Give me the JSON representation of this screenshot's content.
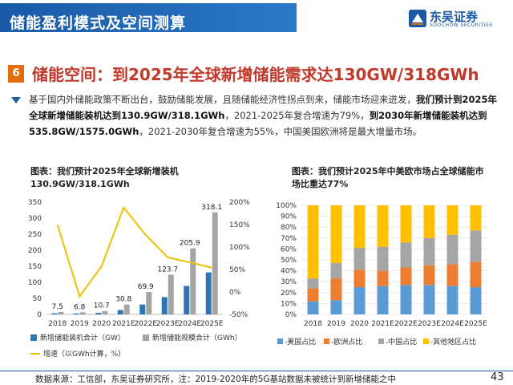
{
  "header": {
    "title": "储能盈利模式及空间测算",
    "logo_text": "东吴证券",
    "logo_sub": "SOOCHOW SECURITIES"
  },
  "section": {
    "number": "6",
    "title": "储能空间：到2025年全球新增储能需求达130GW/318GWh"
  },
  "paragraph": {
    "p1": "基于国内外储能政策不断出台，鼓励储能发展，且随储能经济性拐点到来，储能市场迎来迸发，",
    "p2": "我们预计到2025年全球新增储能装机达到130.9GW/318.1GWh",
    "p3": "，2021-2025年复合增速为79%，",
    "p4": "到2030年新增储能装机达到535.8GW/1575.0GWh",
    "p5": "，2021-2030年复合增速为55%，中国美国欧洲将是最大增量市场。"
  },
  "chart1_title": "图表：我们预计2025年全球新增装机130.9GW/318.1GWh",
  "chart2_title": "图表：我们预计2025年中美欧市场占全球储能市场比重达77%",
  "footer": {
    "source": "数据来源：工信部，东吴证券研究所，注：2019-2020年的5G基站数据未被统计到新增储能之中",
    "page": "43"
  },
  "colors": {
    "brand": "#1a5aa6",
    "accent": "#c0392b",
    "gw": "#2e75b6",
    "gwh": "#a5a5a5",
    "growth": "#f0c000",
    "us": "#5b9bd5",
    "eu": "#ed7d31",
    "cn": "#a5a5a5",
    "other": "#ffc000"
  },
  "chart_data": [
    {
      "type": "bar",
      "categories": [
        "2018",
        "2019",
        "2020",
        "2021E",
        "2022E",
        "2023E",
        "2024E",
        "2025E"
      ],
      "series": [
        {
          "name": "新增储能装机合计（GW）",
          "values": [
            3.5,
            3.0,
            4.9,
            13.5,
            30.8,
            54.0,
            89.0,
            130.9
          ]
        },
        {
          "name": "新增储能规模合计（GWh）",
          "values": [
            7.5,
            6.8,
            10.7,
            30.8,
            69.9,
            123.7,
            205.9,
            318.1
          ]
        },
        {
          "name": "增速（以GWh计算，%）",
          "type": "line",
          "axis": "right",
          "values": [
            150,
            -10,
            57,
            188,
            127,
            77,
            66,
            54
          ]
        }
      ],
      "data_labels": [
        "7.5",
        "6.8",
        "10.7",
        "30.8",
        "69.9",
        "123.7",
        "205.9",
        "318.1"
      ],
      "ylim": [
        0,
        350
      ],
      "yticks": [
        "0",
        "50",
        "100",
        "150",
        "200",
        "250",
        "300",
        "350"
      ],
      "y2lim": [
        -50,
        200
      ],
      "y2ticks": [
        "-50%",
        "0%",
        "50%",
        "100%",
        "150%",
        "200%"
      ],
      "legend_position": "bottom"
    },
    {
      "type": "bar",
      "stacked": true,
      "categories": [
        "2018",
        "2019",
        "2020",
        "2021E",
        "2022E",
        "2023E",
        "2024E",
        "2025E"
      ],
      "series": [
        {
          "name": "-美国占比",
          "values": [
            12,
            13,
            25,
            26,
            27,
            27,
            26,
            25
          ]
        },
        {
          "name": "-欧洲占比",
          "values": [
            12,
            20,
            16,
            14,
            16,
            18,
            20,
            23
          ]
        },
        {
          "name": "-中国占比",
          "values": [
            9,
            14,
            20,
            22,
            23,
            25,
            27,
            29
          ]
        },
        {
          "name": "-其他地区占比",
          "values": [
            67,
            53,
            39,
            38,
            34,
            30,
            27,
            23
          ]
        }
      ],
      "ylim": [
        0,
        100
      ],
      "yticks": [
        "0%",
        "10%",
        "20%",
        "30%",
        "40%",
        "50%",
        "60%",
        "70%",
        "80%",
        "90%",
        "100%"
      ],
      "legend_position": "bottom"
    }
  ]
}
